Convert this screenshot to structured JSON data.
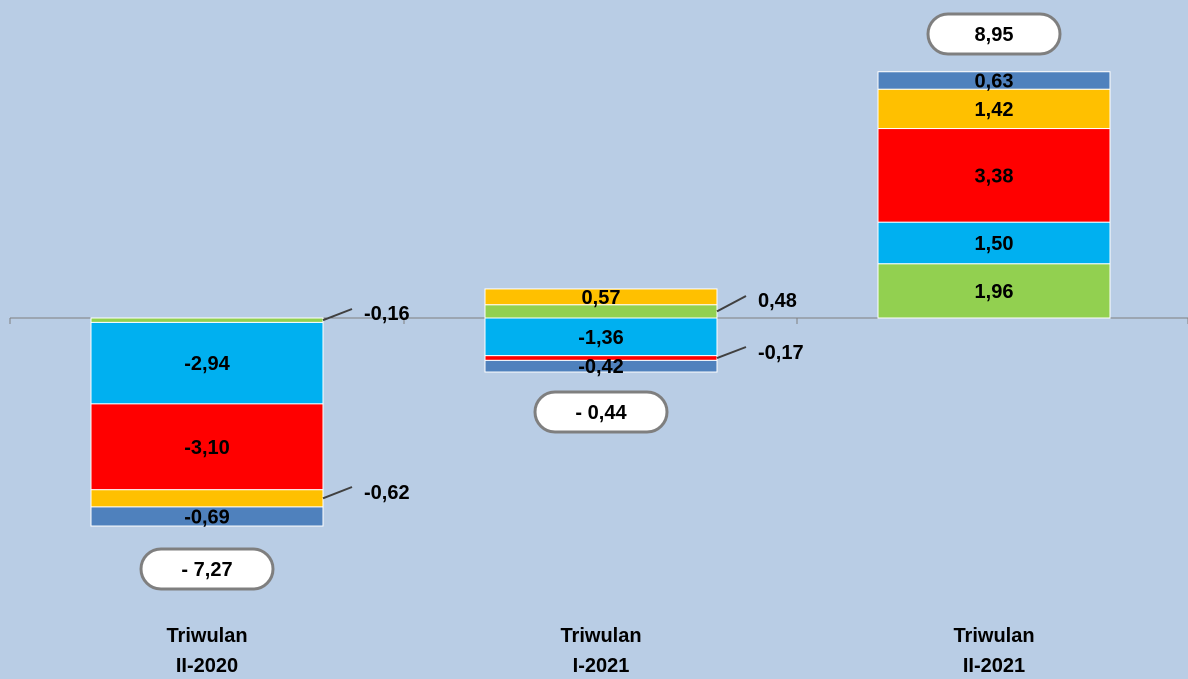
{
  "chart_data": {
    "type": "bar",
    "stacked": true,
    "categories": [
      [
        "Triwulan",
        "II-2020"
      ],
      [
        "Triwulan",
        "I-2021"
      ],
      [
        "Triwulan",
        "II-2021"
      ]
    ],
    "colors": {
      "background": "#b9cde5",
      "green": "#92d050",
      "cyan": "#00b0f0",
      "red": "#ff0000",
      "orange": "#ffc000",
      "blue": "#4f81bd",
      "axis": "#7f7f7f"
    },
    "bars": [
      {
        "total_label": "- 7,27",
        "segments": [
          {
            "value": -0.16,
            "label": "-0,16",
            "color": "#92d050",
            "label_mode": "callout"
          },
          {
            "value": -2.94,
            "label": "-2,94",
            "color": "#00b0f0",
            "label_mode": "inside"
          },
          {
            "value": -3.1,
            "label": "-3,10",
            "color": "#ff0000",
            "label_mode": "inside"
          },
          {
            "value": -0.62,
            "label": "-0,62",
            "color": "#ffc000",
            "label_mode": "callout"
          },
          {
            "value": -0.69,
            "label": "-0,69",
            "color": "#4f81bd",
            "label_mode": "inside"
          }
        ]
      },
      {
        "total_label": "- 0,44",
        "segments": [
          {
            "value": 0.48,
            "label": "0,48",
            "color": "#92d050",
            "label_mode": "callout"
          },
          {
            "value": 0.57,
            "label": "0,57",
            "color": "#ffc000",
            "label_mode": "inside"
          },
          {
            "value": -1.36,
            "label": "-1,36",
            "color": "#00b0f0",
            "label_mode": "inside"
          },
          {
            "value": -0.17,
            "label": "-0,17",
            "color": "#ff0000",
            "label_mode": "callout"
          },
          {
            "value": -0.42,
            "label": "-0,42",
            "color": "#4f81bd",
            "label_mode": "inside"
          }
        ]
      },
      {
        "total_label": "8,95",
        "segments": [
          {
            "value": 1.96,
            "label": "1,96",
            "color": "#92d050",
            "label_mode": "inside"
          },
          {
            "value": 1.5,
            "label": "1,50",
            "color": "#00b0f0",
            "label_mode": "inside"
          },
          {
            "value": 3.38,
            "label": "3,38",
            "color": "#ff0000",
            "label_mode": "inside"
          },
          {
            "value": 1.42,
            "label": "1,42",
            "color": "#ffc000",
            "label_mode": "inside"
          },
          {
            "value": 0.63,
            "label": "0,63",
            "color": "#4f81bd",
            "label_mode": "inside"
          }
        ]
      }
    ],
    "ylim": [
      -11.5,
      11.0
    ],
    "grid": false,
    "legend": "none"
  }
}
